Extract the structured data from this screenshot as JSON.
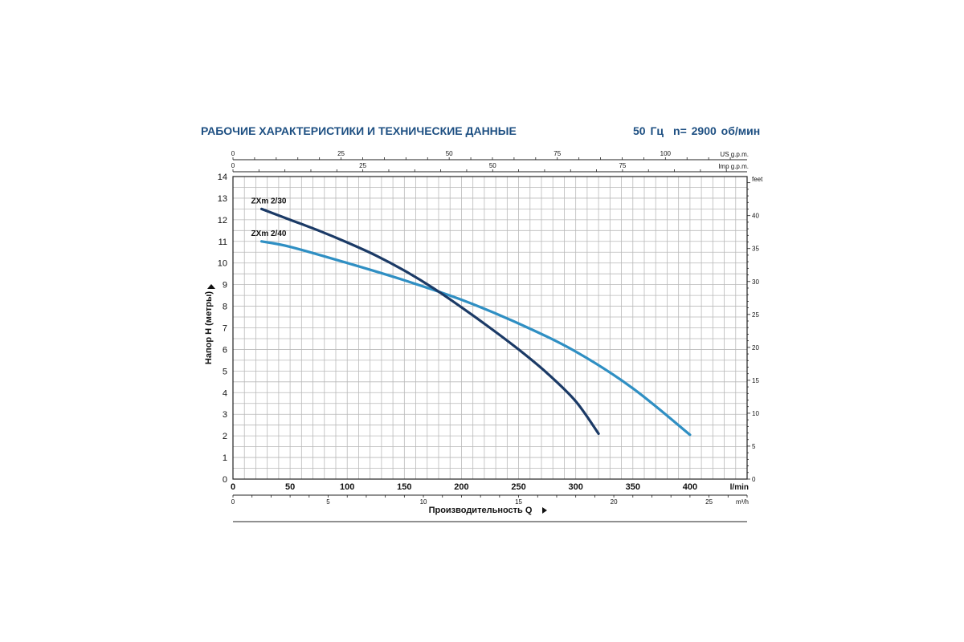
{
  "header": {
    "title": "РАБОЧИЕ ХАРАКТЕРИСТИКИ И ТЕХНИЧЕСКИЕ ДАННЫЕ",
    "frequency": "50 Гц",
    "speed": "n= 2900 об/мин"
  },
  "colors": {
    "title": "#1d4f82",
    "grid": "#b9b9b9",
    "curve_zxm_2_30": "#1b3a66",
    "curve_zxm_2_40": "#2f8fc3"
  },
  "chart_data": {
    "type": "line",
    "ylabel": "Напор H (метры)",
    "xlabel": "Производительность Q",
    "x_unit": "l/min",
    "xlim": [
      0,
      450
    ],
    "ylim": [
      0,
      14
    ],
    "x_ticks": [
      0,
      50,
      100,
      150,
      200,
      250,
      300,
      350,
      400
    ],
    "y_ticks": [
      0,
      1,
      2,
      3,
      4,
      5,
      6,
      7,
      8,
      9,
      10,
      11,
      12,
      13,
      14
    ],
    "secondary_axes": {
      "us_gpm": {
        "label": "US g.p.m.",
        "ticks": [
          0,
          25,
          50,
          75,
          100
        ],
        "factor": 3.785
      },
      "imp_gpm": {
        "label": "Imp g.p.m.",
        "ticks": [
          0,
          25,
          50,
          75
        ],
        "factor": 4.546
      },
      "m3h": {
        "label": "m³/h",
        "ticks": [
          0,
          5,
          10,
          15,
          20,
          25
        ],
        "factor": 16.667
      },
      "feet": {
        "label": "feet",
        "ticks": [
          0,
          5,
          10,
          15,
          20,
          25,
          30,
          35,
          40
        ],
        "factor": 0.3048
      }
    },
    "series": [
      {
        "name": "ZXm 2/30",
        "x": [
          25,
          50,
          75,
          100,
          125,
          150,
          175,
          200,
          225,
          250,
          275,
          300,
          320
        ],
        "y": [
          12.5,
          12.0,
          11.5,
          10.95,
          10.35,
          9.65,
          8.85,
          7.95,
          7.0,
          6.0,
          4.9,
          3.6,
          2.1
        ]
      },
      {
        "name": "ZXm 2/40",
        "x": [
          25,
          50,
          100,
          150,
          200,
          250,
          300,
          350,
          400
        ],
        "y": [
          11.0,
          10.75,
          10.0,
          9.2,
          8.3,
          7.2,
          5.9,
          4.2,
          2.05
        ]
      }
    ]
  }
}
